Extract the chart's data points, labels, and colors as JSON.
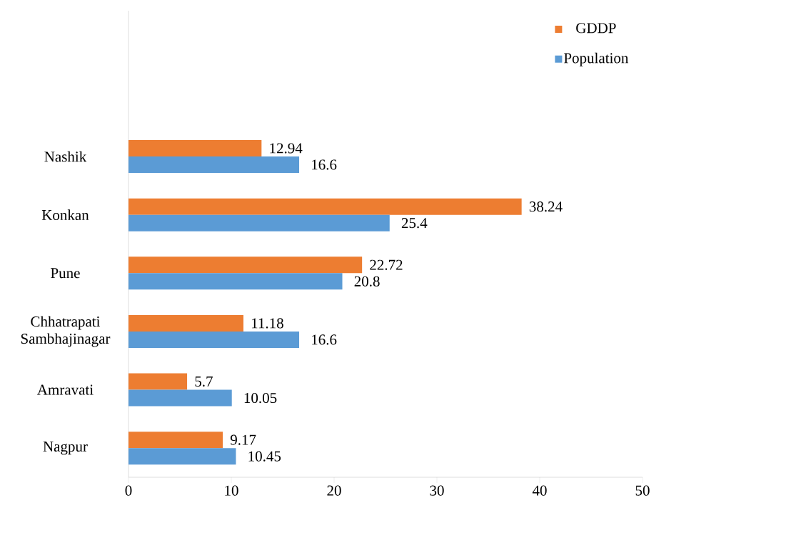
{
  "chart_data": {
    "type": "bar",
    "orientation": "horizontal",
    "categories": [
      null,
      null,
      "Nashik",
      "Konkan",
      "Pune",
      "Chhatrapati Sambhajinagar",
      "Amravati",
      "Nagpur"
    ],
    "series": [
      {
        "name": "GDDP",
        "color": "#ed7d31",
        "values": [
          null,
          null,
          12.94,
          38.24,
          22.72,
          11.18,
          5.7,
          9.17
        ]
      },
      {
        "name": "Population",
        "color": "#5b9bd5",
        "values": [
          null,
          null,
          16.6,
          25.4,
          20.8,
          16.6,
          10.05,
          10.45
        ]
      }
    ],
    "xlim": [
      0,
      50
    ],
    "xticks": [
      0,
      10,
      20,
      30,
      40,
      50
    ],
    "data_labels": true,
    "legend": "top right",
    "grid": false
  }
}
